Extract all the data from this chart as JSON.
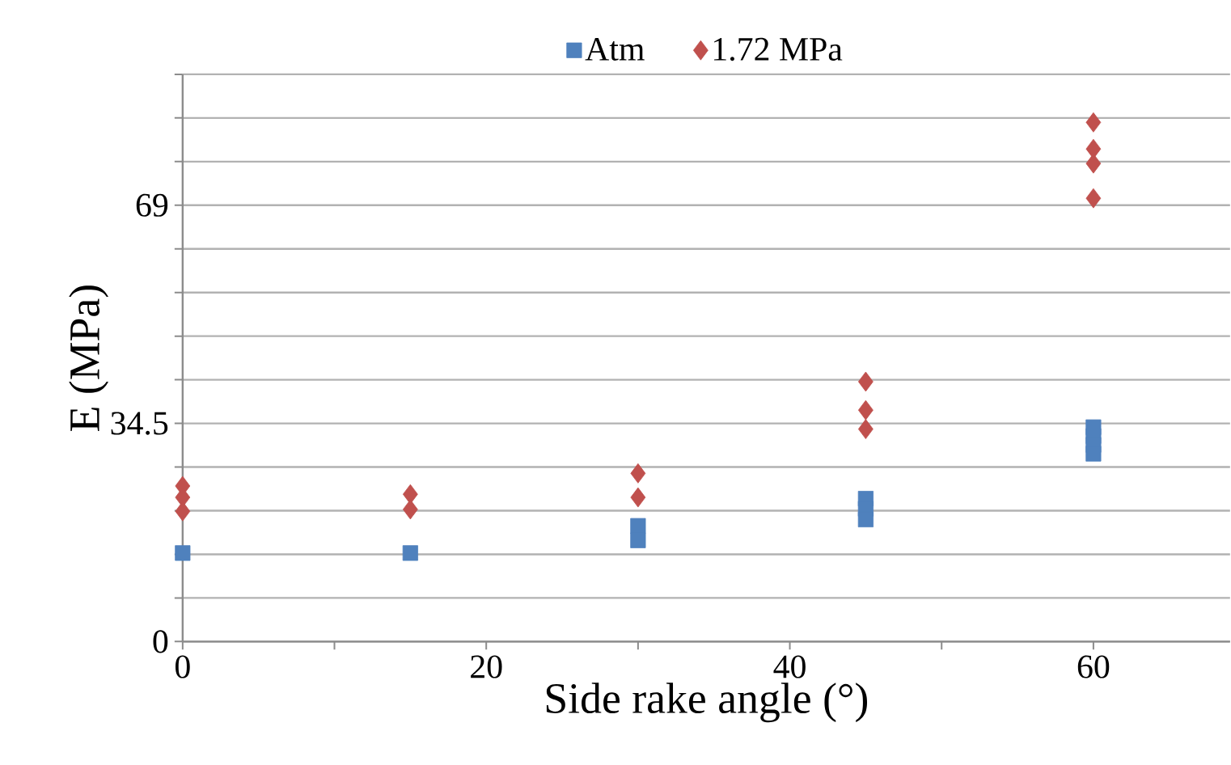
{
  "chart_data": {
    "type": "scatter",
    "xlabel": "Side rake angle (°)",
    "ylabel": "E (MPa)",
    "xlim": [
      0,
      69
    ],
    "xticks": [
      0,
      {
        "value": 10,
        "label": null
      },
      20,
      {
        "value": 30,
        "label": null
      },
      40,
      {
        "value": 50,
        "label": null
      },
      60
    ],
    "ylim": [
      0,
      89.7
    ],
    "yticks": [
      0,
      {
        "value": 6.9,
        "label": null
      },
      {
        "value": 13.8,
        "label": null
      },
      {
        "value": 20.7,
        "label": null
      },
      {
        "value": 27.6,
        "label": null
      },
      34.5,
      {
        "value": 41.4,
        "label": null
      },
      {
        "value": 48.3,
        "label": null
      },
      {
        "value": 55.2,
        "label": null
      },
      {
        "value": 62.1,
        "label": null
      },
      69,
      {
        "value": 75.9,
        "label": null
      },
      {
        "value": 82.8,
        "label": null
      },
      {
        "value": 89.7,
        "label": null
      }
    ],
    "grid": "y",
    "legend": "top",
    "series": [
      {
        "name": "Atm",
        "color": "#4f81bd",
        "marker": "square",
        "x": [
          0,
          15,
          30,
          30,
          45,
          45,
          45,
          60,
          60,
          60,
          60
        ],
        "values": [
          14.0,
          14.0,
          18.3,
          16.0,
          22.6,
          21.0,
          19.3,
          33.9,
          32.5,
          31.1,
          29.7
        ]
      },
      {
        "name": "1.72 MPa",
        "color": "#c0504d",
        "marker": "diamond",
        "x": [
          0,
          0,
          0,
          15,
          15,
          30,
          30,
          45,
          45,
          45,
          60,
          60,
          60,
          60
        ],
        "values": [
          24.6,
          22.8,
          20.6,
          23.3,
          20.9,
          26.6,
          22.8,
          41.1,
          36.6,
          33.6,
          82.1,
          77.9,
          75.6,
          70.1
        ]
      }
    ]
  }
}
